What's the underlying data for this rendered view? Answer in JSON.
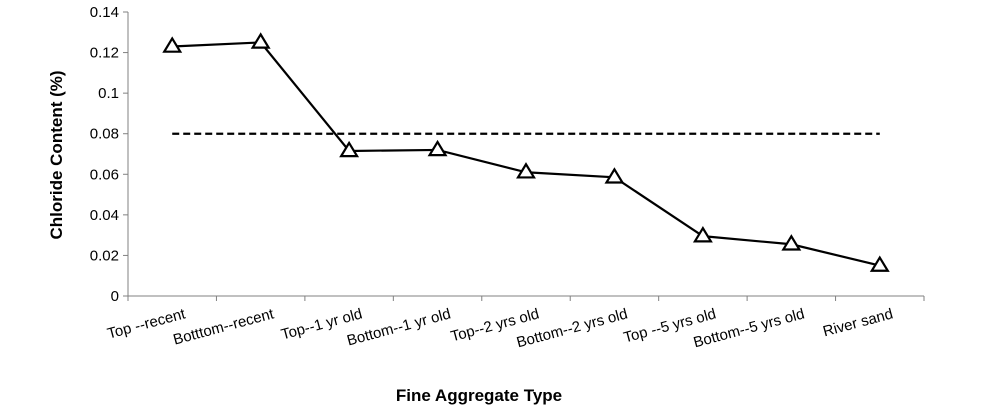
{
  "chart_data": {
    "type": "line",
    "title": "",
    "xlabel": "Fine Aggregate Type",
    "ylabel": "Chloride Content (%)",
    "ylim": [
      0,
      0.14
    ],
    "yticks": [
      "0",
      "0.02",
      "0.04",
      "0.06",
      "0.08",
      "0.1",
      "0.12",
      "0.14"
    ],
    "categories": [
      "Top --recent",
      "Botttom--recent",
      "Top--1 yr old",
      "Bottom--1 yr old",
      "Top--2 yrs old",
      "Bottom--2 yrs old",
      "Top --5 yrs old",
      "Bottom--5 yrs old",
      "River sand"
    ],
    "series": [
      {
        "values": [
          0.123,
          0.125,
          0.0715,
          0.072,
          0.061,
          0.0585,
          0.0295,
          0.0255,
          0.015
        ],
        "marker": "triangle-open",
        "color": "#000000"
      }
    ],
    "reference_line": {
      "value": 0.08,
      "style": "dashed",
      "color": "#000000"
    },
    "grid": false,
    "legend": "none"
  }
}
